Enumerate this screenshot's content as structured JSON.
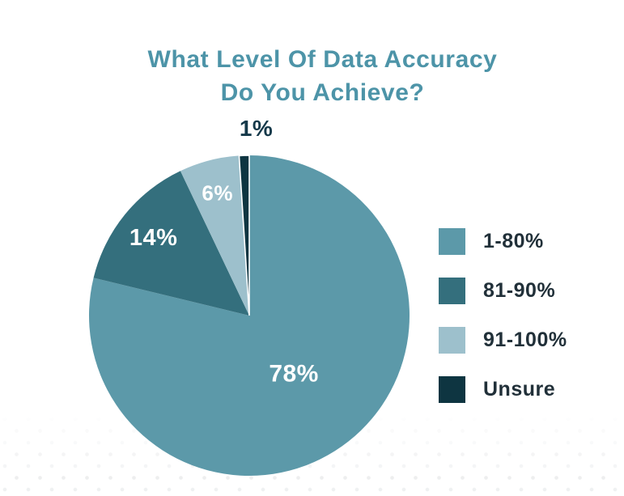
{
  "title": {
    "line1": "What Level Of Data Accuracy",
    "line2": "Do You Achieve?"
  },
  "colors": {
    "title_text": "#4D94A8",
    "legend_text": "#213039",
    "outside_label_text": "#15394A",
    "inside_label_text": "#FFFFFF",
    "background": "#FFFFFF"
  },
  "chart_data": {
    "type": "pie",
    "title": "What Level Of Data Accuracy Do You Achieve?",
    "direction": "clockwise",
    "start_angle_deg": 0,
    "legend_position": "right",
    "categories": [
      "1-80%",
      "81-90%",
      "91-100%",
      "Unsure"
    ],
    "values": [
      78,
      14,
      6,
      1
    ],
    "slices": [
      {
        "label": "1-80%",
        "value": 78,
        "display": "78%",
        "color": "#5C99A9"
      },
      {
        "label": "81-90%",
        "value": 14,
        "display": "14%",
        "color": "#346F7D"
      },
      {
        "label": "91-100%",
        "value": 6,
        "display": "6%",
        "color": "#9DC0CC"
      },
      {
        "label": "Unsure",
        "value": 1,
        "display": "1%",
        "color": "#0E3541"
      }
    ]
  }
}
